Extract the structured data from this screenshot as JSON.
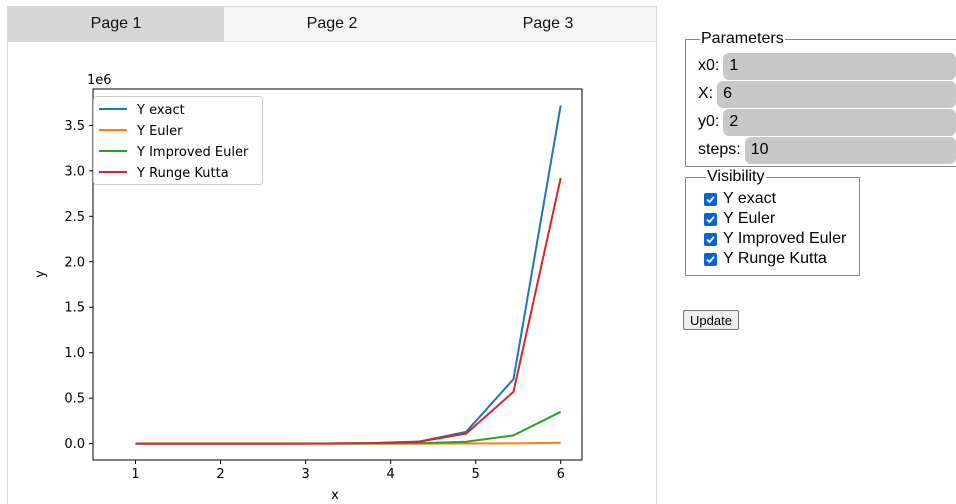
{
  "tabs": [
    {
      "label": "Page 1",
      "active": true
    },
    {
      "label": "Page 2",
      "active": false
    },
    {
      "label": "Page 3",
      "active": false
    }
  ],
  "parameters": {
    "legend": "Parameters",
    "fields": [
      {
        "label": "x0:",
        "value": "1"
      },
      {
        "label": "X:",
        "value": "6"
      },
      {
        "label": "y0:",
        "value": "2"
      },
      {
        "label": "steps:",
        "value": "10"
      }
    ]
  },
  "visibility": {
    "legend": "Visibility",
    "items": [
      {
        "label": "Y exact",
        "checked": true
      },
      {
        "label": "Y Euler",
        "checked": true
      },
      {
        "label": "Y Improved Euler",
        "checked": true
      },
      {
        "label": "Y Runge Kutta",
        "checked": true
      }
    ]
  },
  "update_button": "Update",
  "chart_data": {
    "type": "line",
    "xlabel": "x",
    "ylabel": "y",
    "scale_label": "1e6",
    "xlim": [
      0.5,
      6.25
    ],
    "ylim": [
      -0.18,
      3.9
    ],
    "xticks": [
      1,
      2,
      3,
      4,
      5,
      6
    ],
    "xtick_labels": [
      "1",
      "2",
      "3",
      "4",
      "5",
      "6"
    ],
    "yticks": [
      0,
      0.5,
      1.0,
      1.5,
      2.0,
      2.5,
      3.0,
      3.5
    ],
    "ytick_labels": [
      "0.0",
      "0.5",
      "1.0",
      "1.5",
      "2.0",
      "2.5",
      "3.0",
      "3.5"
    ],
    "legend_position": "upper-left",
    "x": [
      1.0,
      1.5556,
      2.1111,
      2.6667,
      3.2222,
      3.7778,
      4.3333,
      4.8889,
      5.4444,
      6.0
    ],
    "series": [
      {
        "name": "Y exact",
        "color": "#1f77b4",
        "values": [
          0.0,
          0.0,
          0.0,
          0.0005,
          0.002,
          0.006,
          0.022,
          0.13,
          0.71,
          3.72
        ]
      },
      {
        "name": "Y Euler",
        "color": "#ff7f0e",
        "values": [
          0.0,
          0.0,
          0.0,
          0.0,
          0.0,
          0.0,
          0.0,
          0.001,
          0.003,
          0.01
        ]
      },
      {
        "name": "Y Improved Euler",
        "color": "#2ca02c",
        "values": [
          0.0,
          0.0,
          0.0,
          0.0,
          0.0005,
          0.002,
          0.005,
          0.02,
          0.09,
          0.35
        ]
      },
      {
        "name": "Y Runge Kutta",
        "color": "#d62728",
        "values": [
          0.0,
          0.0,
          0.0,
          0.0005,
          0.002,
          0.006,
          0.02,
          0.11,
          0.57,
          2.92
        ]
      }
    ]
  }
}
